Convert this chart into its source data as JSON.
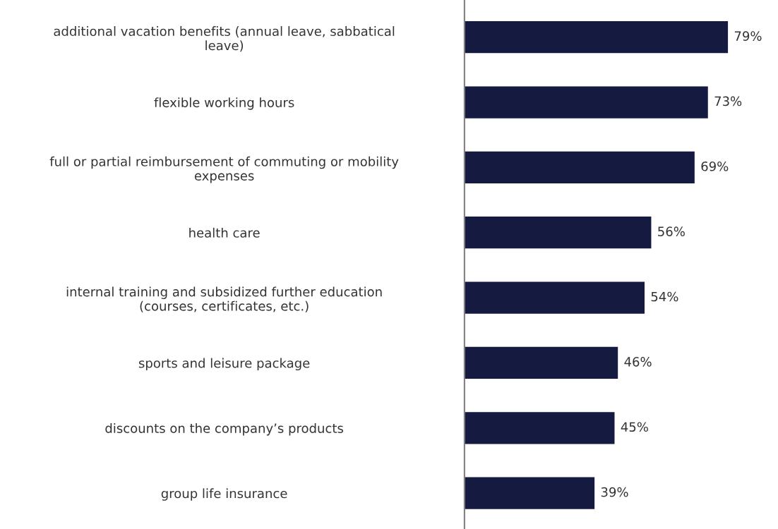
{
  "chart_data": {
    "type": "bar",
    "orientation": "horizontal",
    "categories": [
      "additional vacation benefits (annual leave, sabbatical\nleave)",
      "flexible working hours",
      "full or partial reimbursement of commuting or mobility\nexpenses",
      "health care",
      "internal training and subsidized further education\n(courses, certificates, etc.)",
      "sports and leisure package",
      "discounts on the company’s products",
      "group life insurance"
    ],
    "values": [
      79,
      73,
      69,
      56,
      54,
      46,
      45,
      39
    ],
    "value_labels": [
      "79%",
      "73%",
      "69%",
      "56%",
      "54%",
      "46%",
      "45%",
      "39%"
    ],
    "color": "#141a40",
    "grid": false,
    "legend": false
  }
}
